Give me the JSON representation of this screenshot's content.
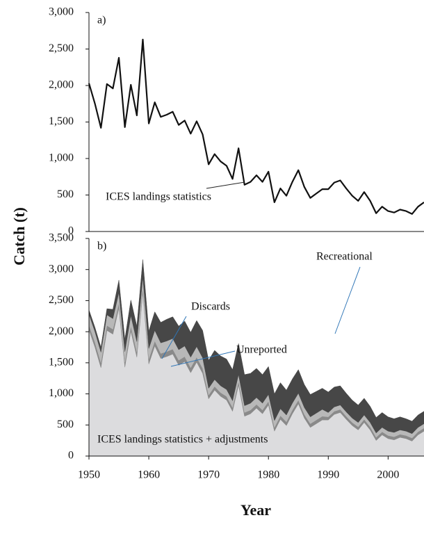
{
  "chart_data": [
    {
      "type": "line",
      "panel_label": "a)",
      "y_label": "Catch (t)",
      "x": [
        1950,
        1951,
        1952,
        1953,
        1954,
        1955,
        1956,
        1957,
        1958,
        1959,
        1960,
        1961,
        1962,
        1963,
        1964,
        1965,
        1966,
        1967,
        1968,
        1969,
        1970,
        1971,
        1972,
        1973,
        1974,
        1975,
        1976,
        1977,
        1978,
        1979,
        1980,
        1981,
        1982,
        1983,
        1984,
        1985,
        1986,
        1987,
        1988,
        1989,
        1990,
        1991,
        1992,
        1993,
        1994,
        1995,
        1996,
        1997,
        1998,
        1999,
        2000,
        2001,
        2002,
        2003,
        2004,
        2005,
        2006
      ],
      "series": [
        {
          "name": "ICES landings statistics",
          "color": "#111111",
          "values": [
            2030,
            1750,
            1420,
            2020,
            1960,
            2380,
            1430,
            2010,
            1590,
            2630,
            1480,
            1770,
            1570,
            1600,
            1640,
            1460,
            1520,
            1340,
            1510,
            1330,
            920,
            1060,
            960,
            900,
            720,
            1140,
            640,
            680,
            770,
            680,
            820,
            400,
            590,
            490,
            680,
            840,
            610,
            460,
            520,
            580,
            580,
            670,
            700,
            590,
            490,
            420,
            540,
            420,
            250,
            340,
            280,
            260,
            300,
            280,
            240,
            340,
            400
          ]
        }
      ],
      "xlim": [
        1950,
        2006
      ],
      "ylim": [
        0,
        3000
      ],
      "yticks": [
        0,
        {
          "value": 500,
          "label": "500"
        },
        {
          "value": 1000,
          "label": "1,000"
        },
        {
          "value": 1500,
          "label": "1,500"
        },
        {
          "value": 2000,
          "label": "2,000"
        },
        {
          "value": 2500,
          "label": "2,500"
        },
        {
          "value": 3000,
          "label": "3,000"
        }
      ]
    },
    {
      "type": "stacked_area",
      "panel_label": "b)",
      "x_label": "Year",
      "annotations": [
        "Discards",
        "Unreported",
        "Recreational",
        "ICES landings statistics + adjustments"
      ],
      "x": [
        1950,
        1951,
        1952,
        1953,
        1954,
        1955,
        1956,
        1957,
        1958,
        1959,
        1960,
        1961,
        1962,
        1963,
        1964,
        1965,
        1966,
        1967,
        1968,
        1969,
        1970,
        1971,
        1972,
        1973,
        1974,
        1975,
        1976,
        1977,
        1978,
        1979,
        1980,
        1981,
        1982,
        1983,
        1984,
        1985,
        1986,
        1987,
        1988,
        1989,
        1990,
        1991,
        1992,
        1993,
        1994,
        1995,
        1996,
        1997,
        1998,
        1999,
        2000,
        2001,
        2002,
        2003,
        2004,
        2005,
        2006
      ],
      "series": [
        {
          "name": "ICES landings statistics + adjustments",
          "color": "#dcdcde",
          "values": [
            2030,
            1750,
            1420,
            2020,
            1960,
            2380,
            1430,
            2010,
            1590,
            2630,
            1480,
            1770,
            1570,
            1600,
            1640,
            1460,
            1520,
            1340,
            1510,
            1330,
            920,
            1060,
            960,
            900,
            720,
            1140,
            640,
            680,
            770,
            680,
            820,
            400,
            590,
            490,
            680,
            840,
            610,
            460,
            520,
            580,
            580,
            670,
            700,
            590,
            490,
            420,
            540,
            420,
            250,
            340,
            280,
            260,
            300,
            280,
            240,
            340,
            400
          ]
        },
        {
          "name": "Unreported",
          "color": "#8a8a8a",
          "values": [
            80,
            80,
            80,
            80,
            80,
            80,
            80,
            80,
            80,
            80,
            80,
            80,
            80,
            80,
            80,
            80,
            80,
            80,
            80,
            80,
            60,
            60,
            60,
            60,
            60,
            60,
            60,
            60,
            60,
            60,
            60,
            60,
            60,
            60,
            60,
            60,
            60,
            60,
            60,
            60,
            50,
            50,
            50,
            50,
            50,
            50,
            50,
            50,
            50,
            50,
            50,
            50,
            50,
            50,
            50,
            50,
            50
          ]
        },
        {
          "name": "Discards",
          "color": "#b8b8b8",
          "values": [
            170,
            170,
            170,
            170,
            170,
            170,
            170,
            170,
            170,
            170,
            170,
            170,
            170,
            170,
            170,
            170,
            170,
            170,
            170,
            170,
            110,
            110,
            110,
            110,
            110,
            110,
            110,
            110,
            110,
            110,
            110,
            110,
            110,
            110,
            110,
            110,
            110,
            110,
            110,
            110,
            70,
            70,
            70,
            70,
            70,
            70,
            70,
            70,
            70,
            70,
            70,
            70,
            70,
            70,
            70,
            70,
            70
          ]
        },
        {
          "name": "Recreational",
          "color": "#474747",
          "values": [
            70,
            70,
            80,
            100,
            150,
            200,
            200,
            250,
            250,
            280,
            280,
            300,
            330,
            350,
            350,
            380,
            400,
            400,
            420,
            440,
            450,
            470,
            480,
            490,
            500,
            500,
            500,
            480,
            470,
            460,
            450,
            430,
            420,
            400,
            390,
            380,
            370,
            360,
            350,
            340,
            330,
            320,
            310,
            300,
            290,
            280,
            270,
            260,
            250,
            240,
            230,
            220,
            210,
            200,
            200,
            200,
            200
          ]
        }
      ],
      "xlim": [
        1950,
        2006
      ],
      "xticks": [
        1950,
        1960,
        1970,
        1980,
        1990,
        2000
      ],
      "ylim": [
        0,
        3500
      ],
      "yticks": [
        0,
        {
          "value": 500,
          "label": "500"
        },
        {
          "value": 1000,
          "label": "1,000"
        },
        {
          "value": 1500,
          "label": "1,500"
        },
        {
          "value": 2000,
          "label": "2,000"
        },
        {
          "value": 2500,
          "label": "2,500"
        },
        {
          "value": 3000,
          "label": "3,000"
        },
        {
          "value": 3500,
          "label": "3,500"
        }
      ]
    }
  ]
}
